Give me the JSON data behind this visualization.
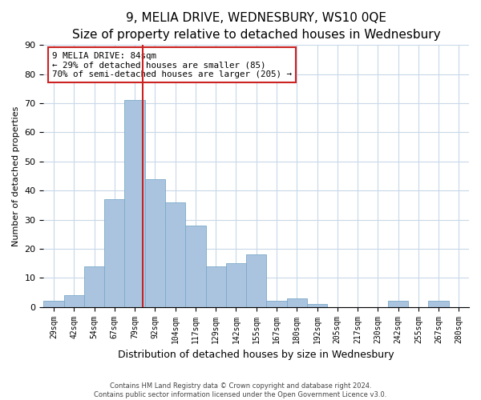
{
  "title": "9, MELIA DRIVE, WEDNESBURY, WS10 0QE",
  "subtitle": "Size of property relative to detached houses in Wednesbury",
  "xlabel": "Distribution of detached houses by size in Wednesbury",
  "ylabel": "Number of detached properties",
  "bin_labels": [
    "29sqm",
    "42sqm",
    "54sqm",
    "67sqm",
    "79sqm",
    "92sqm",
    "104sqm",
    "117sqm",
    "129sqm",
    "142sqm",
    "155sqm",
    "167sqm",
    "180sqm",
    "192sqm",
    "205sqm",
    "217sqm",
    "230sqm",
    "242sqm",
    "255sqm",
    "267sqm",
    "280sqm"
  ],
  "bar_values": [
    2,
    4,
    14,
    37,
    71,
    44,
    36,
    28,
    14,
    15,
    18,
    2,
    3,
    1,
    0,
    0,
    0,
    2,
    0,
    2,
    0
  ],
  "bar_color": "#aac4e0",
  "bar_edge_color": "#7aaac8",
  "highlight_line_color": "#cc2222",
  "ylim": [
    0,
    90
  ],
  "yticks": [
    0,
    10,
    20,
    30,
    40,
    50,
    60,
    70,
    80,
    90
  ],
  "ann_line1": "9 MELIA DRIVE: 84sqm",
  "ann_line2": "← 29% of detached houses are smaller (85)",
  "ann_line3": "70% of semi-detached houses are larger (205) →",
  "annotation_box_facecolor": "#ffffff",
  "annotation_box_edgecolor": "#cc2222",
  "footer_line1": "Contains HM Land Registry data © Crown copyright and database right 2024.",
  "footer_line2": "Contains public sector information licensed under the Open Government Licence v3.0.",
  "background_color": "#ffffff",
  "grid_color": "#c8d8e8",
  "title_fontsize": 11,
  "subtitle_fontsize": 9.5
}
